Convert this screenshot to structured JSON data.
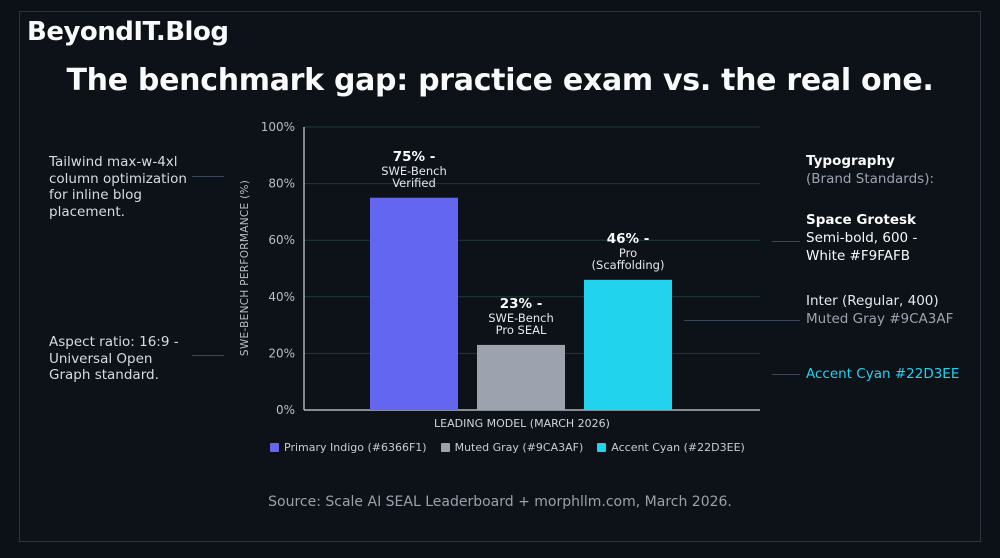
{
  "brand": "BeyondIT.Blog",
  "title": "The benchmark gap: practice exam vs. the real one.",
  "left_notes": {
    "layout": "Tailwind max-w-4xl column optimization for inline blog placement.",
    "aspect": "Aspect ratio: 16:9 - Universal Open Graph standard."
  },
  "right_notes": {
    "typography_heading": "Typography",
    "typography_sub": "(Brand Standards):",
    "font1_name": "Space Grotesk",
    "font1_spec": "Semi-bold, 600 -",
    "font1_color": "White #F9FAFB",
    "font2_spec": "Inter (Regular, 400)",
    "font2_color": "Muted Gray #9CA3AF",
    "accent": "Accent Cyan #22D3EE"
  },
  "chart_data": {
    "type": "bar",
    "categories": [
      "SWE-Bench Verified",
      "SWE-Bench Pro SEAL",
      "Pro (Scaffolding)"
    ],
    "values": [
      75,
      23,
      46
    ],
    "bar_labels": [
      {
        "pct": "75% -",
        "lines": [
          "SWE-Bench",
          "Verified"
        ]
      },
      {
        "pct": "23% -",
        "lines": [
          "SWE-Bench",
          "Pro SEAL"
        ]
      },
      {
        "pct": "46% -",
        "lines": [
          "Pro",
          "(Scaffolding)"
        ]
      }
    ],
    "colors": [
      "#6366F1",
      "#9CA3AF",
      "#22D3EE"
    ],
    "ylim": [
      0,
      100
    ],
    "yticks": [
      "0%",
      "20%",
      "40%",
      "60%",
      "80%",
      "100%"
    ],
    "ylabel": "SWE-BENCH PERFORMANCE (%)",
    "xlabel": "LEADING MODEL (MARCH 2026)",
    "grid": true,
    "legend_position": "bottom",
    "legend": [
      {
        "label": "Primary Indigo (#6366F1)",
        "color": "#6366F1"
      },
      {
        "label": "Muted Gray (#9CA3AF)",
        "color": "#9CA3AF"
      },
      {
        "label": "Accent Cyan (#22D3EE)",
        "color": "#22D3EE"
      }
    ]
  },
  "source": "Source: Scale AI SEAL Leaderboard + morphllm.com, March 2026."
}
